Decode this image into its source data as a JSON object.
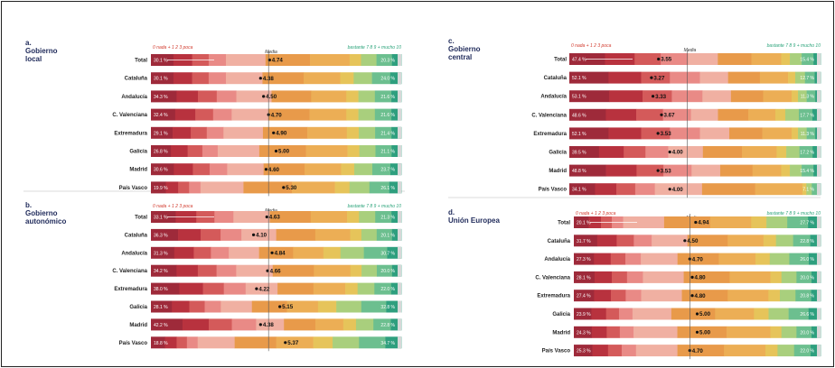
{
  "colors": {
    "scale": [
      "#9e2a3a",
      "#b8323e",
      "#d45a5a",
      "#e98a86",
      "#f0b0a2",
      "#e89a4a",
      "#ecae55",
      "#e6c45a",
      "#a9cf7d",
      "#6cbf8f",
      "#2e9f7e",
      "#b8ddd0"
    ],
    "panel_title": "#1f2a5a",
    "total_row_bg": "#ffffff"
  },
  "chart_data": [
    {
      "type": "bar",
      "letter": "a.",
      "title_lines": [
        "Gobierno",
        "local"
      ],
      "legend": {
        "left": "0 nada + 1 2 3 poca",
        "mid": "Media",
        "right": "bastante 7 8 9 + mucho 10"
      },
      "categories": [
        "Total",
        "Cataluña",
        "Andalucía",
        "C. Valenciana",
        "Extremadura",
        "Galicia",
        "Madrid",
        "País Vasco"
      ],
      "means": [
        4.74,
        4.38,
        4.5,
        4.7,
        4.9,
        5.0,
        4.6,
        5.3
      ],
      "mean_labels": [
        "4.74",
        "4.38",
        "4.50",
        "4.70",
        "4.90",
        "5.00",
        "4.60",
        "5.30"
      ],
      "low_pct": [
        "30.1 %",
        "30.1 %",
        "34.3 %",
        "32.4 %",
        "29.1 %",
        "26.8 %",
        "30.6 %",
        "19.9 %"
      ],
      "high_pct": [
        "20.3 %",
        "24.0 %",
        "21.6 %",
        "21.6 %",
        "21.4 %",
        "21.1 %",
        "23.7 %",
        "26.1 %"
      ]
    },
    {
      "type": "bar",
      "letter": "b.",
      "title_lines": [
        "Gobierno",
        "autonómico"
      ],
      "legend": {
        "left": "0 nada + 1 2 3 poca",
        "mid": "Media",
        "right": "bastante 7 8 9 + mucho 10"
      },
      "categories": [
        "Total",
        "Cataluña",
        "Andalucía",
        "C. Valenciana",
        "Extremadura",
        "Galicia",
        "Madrid",
        "País Vasco"
      ],
      "means": [
        4.63,
        4.1,
        4.84,
        4.66,
        4.22,
        5.15,
        4.38,
        5.37
      ],
      "mean_labels": [
        "4.63",
        "4.10",
        "4.84",
        "4.66",
        "4.22",
        "5.15",
        "4.38",
        "5.37"
      ],
      "low_pct": [
        "33.1 %",
        "36.3 %",
        "31.3 %",
        "34.2 %",
        "38.0 %",
        "28.1 %",
        "42.2 %",
        "18.8 %"
      ],
      "high_pct": [
        "21.3 %",
        "20.1 %",
        "30.7 %",
        "20.0 %",
        "22.0 %",
        "32.8 %",
        "22.8 %",
        "34.7 %"
      ]
    },
    {
      "type": "bar",
      "letter": "c.",
      "title_lines": [
        "Gobierno",
        "central"
      ],
      "legend": {
        "left": "0 nada + 1 2 3 poca",
        "mid": "Media",
        "right": "bastante 7 8 9 + mucho 10"
      },
      "categories": [
        "Total",
        "Cataluña",
        "Andalucía",
        "C. Valenciana",
        "Extremadura",
        "Galicia",
        "Madrid",
        "País Vasco"
      ],
      "means": [
        3.55,
        3.27,
        3.33,
        3.67,
        3.53,
        4.0,
        3.53,
        4.0
      ],
      "mean_labels": [
        "3.55",
        "3.27",
        "3.33",
        "3.67",
        "3.53",
        "4.00",
        "3.53",
        "4.00"
      ],
      "low_pct": [
        "47.4 %",
        "52.1 %",
        "53.1 %",
        "48.6 %",
        "52.1 %",
        "39.5 %",
        "48.8 %",
        "34.1 %"
      ],
      "high_pct": [
        "15.4 %",
        "12.7 %",
        "11.3 %",
        "17.7 %",
        "11.3 %",
        "17.2 %",
        "15.4 %",
        "7.1 %"
      ]
    },
    {
      "type": "bar",
      "letter": "d.",
      "title_lines": [
        "Unión Europea"
      ],
      "legend": {
        "left": "0 nada + 1 2 3 poca",
        "mid": "Media",
        "right": "bastante 7 8 9 + mucho 10"
      },
      "categories": [
        "Total",
        "Cataluña",
        "Andalucía",
        "C. Valenciana",
        "Extremadura",
        "Galicia",
        "Madrid",
        "País Vasco"
      ],
      "means": [
        4.94,
        4.5,
        4.7,
        4.8,
        4.8,
        5.0,
        5.0,
        4.7
      ],
      "mean_labels": [
        "4.94",
        "4.50",
        "4.70",
        "4.80",
        "4.80",
        "5.00",
        "5.00",
        "4.70"
      ],
      "low_pct": [
        "20.1 %",
        "31.7 %",
        "27.3 %",
        "28.1 %",
        "27.4 %",
        "23.9 %",
        "24.3 %",
        "25.3 %"
      ],
      "high_pct": [
        "27.7 %",
        "22.8 %",
        "26.0 %",
        "20.0 %",
        "20.8 %",
        "26.6 %",
        "20.0 %",
        "22.0 %"
      ]
    }
  ]
}
